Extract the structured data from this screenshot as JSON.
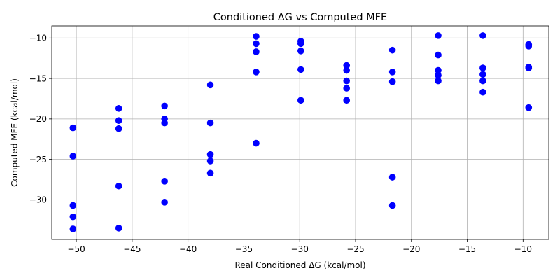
{
  "chart_data": {
    "type": "scatter",
    "title": "Conditioned ΔG vs Computed MFE",
    "xlabel": "Real Conditioned ΔG (kcal/mol)",
    "ylabel": "Computed MFE (kcal/mol)",
    "xlim": [
      -52.2,
      -7.7
    ],
    "ylim": [
      -34.9,
      -8.5
    ],
    "xticks": [
      -50,
      -45,
      -40,
      -35,
      -30,
      -25,
      -20,
      -15,
      -10
    ],
    "yticks": [
      -30,
      -25,
      -20,
      -15,
      -10
    ],
    "grid": true,
    "marker_color": "#0000ff",
    "points": [
      [
        -50.3,
        -21.1
      ],
      [
        -50.3,
        -24.6
      ],
      [
        -50.3,
        -30.7
      ],
      [
        -50.3,
        -32.1
      ],
      [
        -50.3,
        -33.6
      ],
      [
        -46.2,
        -18.7
      ],
      [
        -46.2,
        -20.2
      ],
      [
        -46.2,
        -21.2
      ],
      [
        -46.2,
        -28.3
      ],
      [
        -46.2,
        -33.5
      ],
      [
        -42.1,
        -18.4
      ],
      [
        -42.1,
        -20.0
      ],
      [
        -42.1,
        -20.5
      ],
      [
        -42.1,
        -27.7
      ],
      [
        -42.1,
        -30.3
      ],
      [
        -38.0,
        -15.8
      ],
      [
        -38.0,
        -20.5
      ],
      [
        -38.0,
        -24.4
      ],
      [
        -38.0,
        -25.2
      ],
      [
        -38.0,
        -26.7
      ],
      [
        -33.9,
        -9.8
      ],
      [
        -33.9,
        -10.7
      ],
      [
        -33.9,
        -11.7
      ],
      [
        -33.9,
        -14.2
      ],
      [
        -33.9,
        -23.0
      ],
      [
        -29.9,
        -10.4
      ],
      [
        -29.9,
        -10.7
      ],
      [
        -29.9,
        -11.6
      ],
      [
        -29.9,
        -13.9
      ],
      [
        -29.9,
        -17.7
      ],
      [
        -25.8,
        -13.4
      ],
      [
        -25.8,
        -14.0
      ],
      [
        -25.8,
        -15.3
      ],
      [
        -25.8,
        -16.2
      ],
      [
        -25.8,
        -17.7
      ],
      [
        -21.7,
        -11.5
      ],
      [
        -21.7,
        -14.2
      ],
      [
        -21.7,
        -15.4
      ],
      [
        -21.7,
        -27.2
      ],
      [
        -21.7,
        -30.7
      ],
      [
        -17.6,
        -9.7
      ],
      [
        -17.6,
        -12.1
      ],
      [
        -17.6,
        -14.0
      ],
      [
        -17.6,
        -14.6
      ],
      [
        -17.6,
        -15.3
      ],
      [
        -13.6,
        -9.7
      ],
      [
        -13.6,
        -13.7
      ],
      [
        -13.6,
        -14.5
      ],
      [
        -13.6,
        -15.3
      ],
      [
        -13.6,
        -16.7
      ],
      [
        -9.5,
        -10.8
      ],
      [
        -9.5,
        -11.0
      ],
      [
        -9.5,
        -13.6
      ],
      [
        -9.5,
        -13.7
      ],
      [
        -9.5,
        -18.6
      ]
    ]
  }
}
